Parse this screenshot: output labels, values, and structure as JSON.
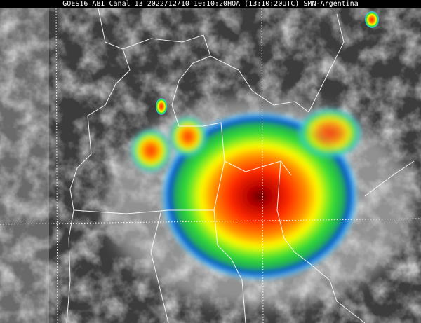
{
  "title": "GOES16 ABI Canal 13 2022/12/10 10:10:20HOA (13:10:20UTC) SMN-Argentina",
  "image": {
    "type": "infrared satellite image with color-enhanced cloud tops",
    "colors": {
      "core": "#8b0000",
      "red": "#ff2a00",
      "orange": "#ff8c00",
      "yellow": "#ffff00",
      "green": "#22dd33",
      "blue": "#0033cc",
      "cyan": "#22ccff",
      "cloud": "#e0e0e0",
      "ground": "#3a3a3a"
    }
  }
}
